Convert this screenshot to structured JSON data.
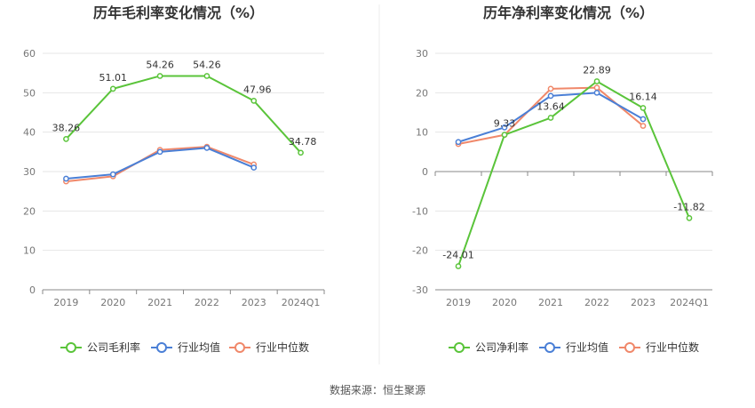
{
  "source_label": "数据来源：恒生聚源",
  "chart_data": [
    {
      "type": "line",
      "title": "历年毛利率变化情况（%）",
      "categories": [
        "2019",
        "2020",
        "2021",
        "2022",
        "2023",
        "2024Q1"
      ],
      "ylim": [
        0,
        60
      ],
      "yticks": [
        0,
        10,
        20,
        30,
        40,
        50,
        60
      ],
      "grid": true,
      "legend_position": "bottom",
      "series": [
        {
          "name": "公司毛利率",
          "color": "#5ac43a",
          "values": [
            38.26,
            51.01,
            54.26,
            54.26,
            47.96,
            34.78
          ],
          "labels": [
            "38.26",
            "51.01",
            "54.26",
            "54.26",
            "47.96",
            "34.78"
          ]
        },
        {
          "name": "行业均值",
          "color": "#4a7fd6",
          "values": [
            28.2,
            29.3,
            35.0,
            36.0,
            31.0,
            null
          ]
        },
        {
          "name": "行业中位数",
          "color": "#f0886a",
          "values": [
            27.5,
            28.8,
            35.5,
            36.3,
            31.8,
            null
          ]
        }
      ]
    },
    {
      "type": "line",
      "title": "历年净利率变化情况（%）",
      "categories": [
        "2019",
        "2020",
        "2021",
        "2022",
        "2023",
        "2024Q1"
      ],
      "ylim": [
        -30,
        30
      ],
      "yticks": [
        -30,
        -20,
        -10,
        0,
        10,
        20,
        30
      ],
      "grid": true,
      "legend_position": "bottom",
      "series": [
        {
          "name": "公司净利率",
          "color": "#5ac43a",
          "values": [
            -24.01,
            9.33,
            13.64,
            22.89,
            16.14,
            -11.82
          ],
          "labels": [
            "-24.01",
            "9.33",
            "13.64",
            "22.89",
            "16.14",
            "-11.82"
          ]
        },
        {
          "name": "行业均值",
          "color": "#4a7fd6",
          "values": [
            7.5,
            11.2,
            19.2,
            20.0,
            13.3,
            null
          ]
        },
        {
          "name": "行业中位数",
          "color": "#f0886a",
          "values": [
            7.0,
            9.3,
            21.0,
            21.3,
            11.6,
            null
          ]
        }
      ]
    }
  ]
}
